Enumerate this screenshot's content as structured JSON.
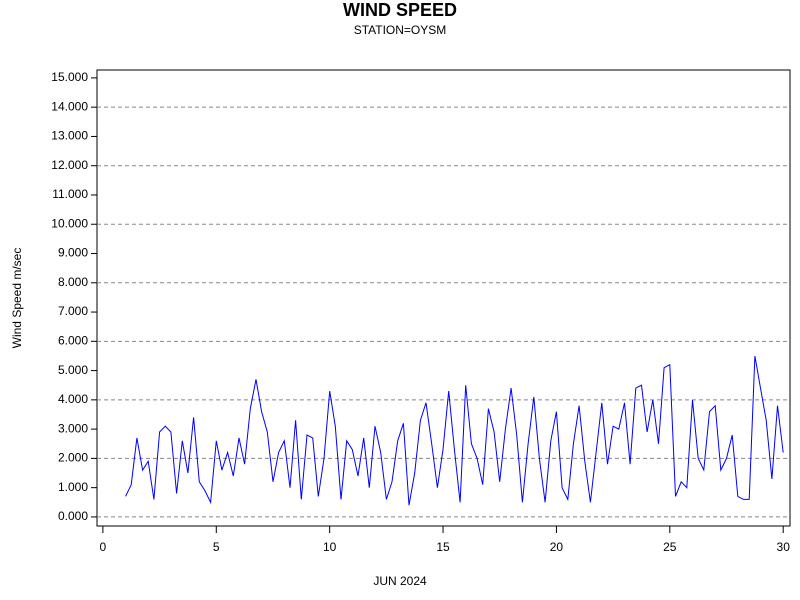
{
  "chart_data": {
    "type": "line",
    "title": "WIND SPEED",
    "subtitle": "STATION=OYSM",
    "x_label": "JUN 2024",
    "y_label": "Wind Speed m/sec",
    "x": [
      1,
      1.25,
      1.5,
      1.75,
      2,
      2.25,
      2.5,
      2.75,
      3,
      3.25,
      3.5,
      3.75,
      4,
      4.25,
      4.5,
      4.75,
      5,
      5.25,
      5.5,
      5.75,
      6,
      6.25,
      6.5,
      6.75,
      7,
      7.25,
      7.5,
      7.75,
      8,
      8.25,
      8.5,
      8.75,
      9,
      9.25,
      9.5,
      9.75,
      10,
      10.25,
      10.5,
      10.75,
      11,
      11.25,
      11.5,
      11.75,
      12,
      12.25,
      12.5,
      12.75,
      13,
      13.25,
      13.5,
      13.75,
      14,
      14.25,
      14.5,
      14.75,
      15,
      15.25,
      15.5,
      15.75,
      16,
      16.25,
      16.5,
      16.75,
      17,
      17.25,
      17.5,
      17.75,
      18,
      18.25,
      18.5,
      18.75,
      19,
      19.25,
      19.5,
      19.75,
      20,
      20.25,
      20.5,
      20.75,
      21,
      21.25,
      21.5,
      21.75,
      22,
      22.25,
      22.5,
      22.75,
      23,
      23.25,
      23.5,
      23.75,
      24,
      24.25,
      24.5,
      24.75,
      25,
      25.25,
      25.5,
      25.75,
      26,
      26.25,
      26.5,
      26.75,
      27,
      27.25,
      27.5,
      27.75,
      28,
      28.25,
      28.5,
      28.75,
      29,
      29.25,
      29.5,
      29.75,
      30
    ],
    "series": [
      {
        "name": "Wind Speed",
        "color": "#0000ff",
        "values": [
          0.7,
          1.1,
          2.7,
          1.6,
          1.9,
          0.6,
          2.9,
          3.1,
          2.9,
          0.8,
          2.6,
          1.5,
          3.4,
          1.2,
          0.9,
          0.5,
          2.6,
          1.6,
          2.2,
          1.4,
          2.7,
          1.8,
          3.7,
          4.7,
          3.6,
          2.9,
          1.2,
          2.2,
          2.6,
          1.0,
          3.3,
          0.6,
          2.8,
          2.7,
          0.7,
          2.0,
          4.3,
          3.1,
          0.6,
          2.6,
          2.3,
          1.4,
          2.7,
          1.0,
          3.1,
          2.2,
          0.6,
          1.2,
          2.6,
          3.2,
          0.4,
          1.5,
          3.3,
          3.9,
          2.5,
          1.0,
          2.3,
          4.3,
          2.3,
          0.5,
          4.5,
          2.5,
          2.0,
          1.1,
          3.7,
          2.9,
          1.2,
          3.0,
          4.4,
          2.8,
          0.5,
          2.5,
          4.1,
          2.0,
          0.5,
          2.6,
          3.6,
          1.0,
          0.6,
          2.5,
          3.8,
          1.9,
          0.5,
          2.2,
          3.9,
          1.8,
          3.1,
          3.0,
          3.9,
          1.8,
          4.4,
          4.5,
          2.9,
          4.0,
          2.5,
          5.1,
          5.2,
          0.7,
          1.2,
          1.0,
          4.0,
          2.0,
          1.6,
          3.6,
          3.8,
          1.6,
          2.0,
          2.8,
          0.7,
          0.6,
          0.6,
          5.5,
          4.4,
          3.3,
          1.3,
          3.8,
          2.2
        ]
      }
    ],
    "xlim": [
      -0.26,
      30.3
    ],
    "xticks": [
      0,
      5,
      10,
      15,
      20,
      25,
      30
    ],
    "ylim": [
      -0.31,
      15.27
    ],
    "yticks": [
      {
        "value": 0,
        "label": "0.000"
      },
      {
        "value": 1,
        "label": "1.000"
      },
      {
        "value": 2,
        "label": "2.000"
      },
      {
        "value": 3,
        "label": "3.000"
      },
      {
        "value": 4,
        "label": "4.000"
      },
      {
        "value": 5,
        "label": "5.000"
      },
      {
        "value": 6,
        "label": "6.000"
      },
      {
        "value": 7,
        "label": "7.000"
      },
      {
        "value": 8,
        "label": "8.000"
      },
      {
        "value": 9,
        "label": "9.000"
      },
      {
        "value": 10,
        "label": "10.000"
      },
      {
        "value": 11,
        "label": "11.000"
      },
      {
        "value": 12,
        "label": "12.000"
      },
      {
        "value": 13,
        "label": "13.000"
      },
      {
        "value": 14,
        "label": "14.000"
      },
      {
        "value": 15,
        "label": "15.000"
      }
    ],
    "grid": true
  }
}
